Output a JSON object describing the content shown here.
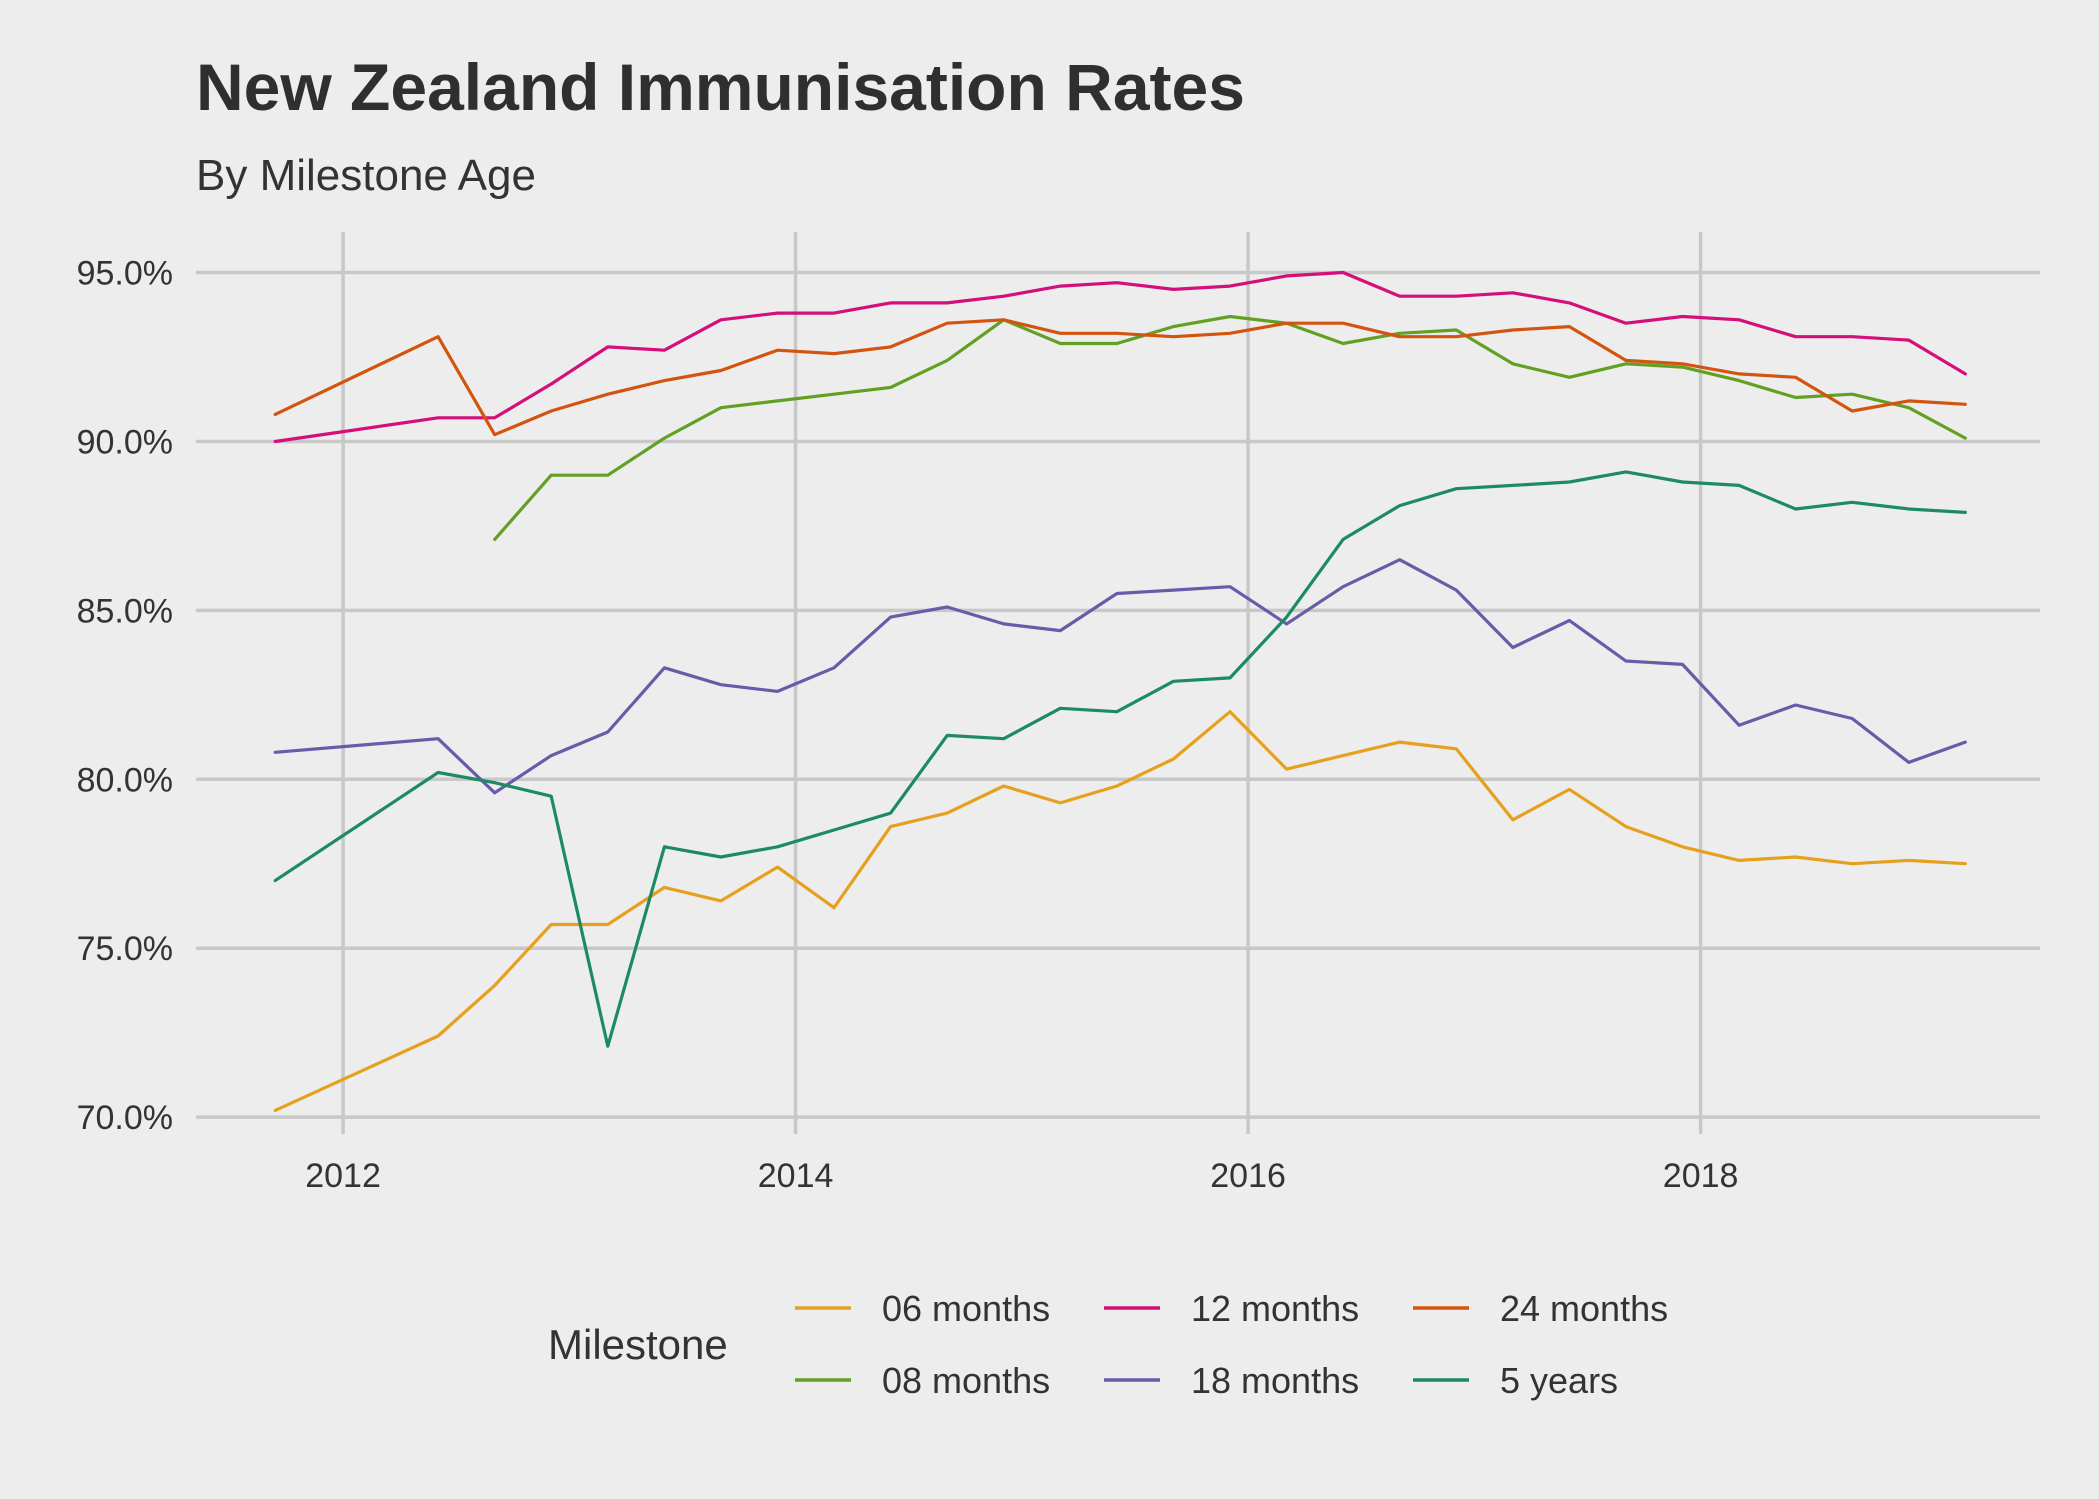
{
  "chart_data": {
    "type": "line",
    "title": "New Zealand Immunisation Rates",
    "subtitle": "By Milestone Age",
    "xlabel": "",
    "ylabel": "",
    "xlim": [
      2011.35,
      2019.5
    ],
    "ylim": [
      69.5,
      96.2
    ],
    "x_ticks": [
      2012,
      2014,
      2016,
      2018
    ],
    "x_tick_labels": [
      "2012",
      "2014",
      "2016",
      "2018"
    ],
    "y_ticks": [
      70,
      75,
      80,
      85,
      90,
      95
    ],
    "y_tick_labels": [
      "70.0%",
      "75.0%",
      "80.0%",
      "85.0%",
      "90.0%",
      "95.0%"
    ],
    "grid": true,
    "legend": {
      "title": "Milestone",
      "position": "bottom",
      "order": [
        "06 months",
        "12 months",
        "24 months",
        "08 months",
        "18 months",
        "5 years"
      ]
    },
    "series": [
      {
        "name": "06 months",
        "color": "#E6A01E",
        "x": [
          2011.7,
          2012.42,
          2012.67,
          2012.92,
          2013.17,
          2013.42,
          2013.67,
          2013.92,
          2014.17,
          2014.42,
          2014.67,
          2014.92,
          2015.17,
          2015.42,
          2015.67,
          2015.92,
          2016.17,
          2016.42,
          2016.67,
          2016.92,
          2017.17,
          2017.42,
          2017.67,
          2017.92,
          2018.17,
          2018.42,
          2018.67,
          2018.92,
          2019.17
        ],
        "values": [
          70.2,
          72.4,
          73.9,
          75.7,
          75.7,
          76.8,
          76.4,
          77.4,
          76.2,
          78.6,
          79.0,
          79.8,
          79.3,
          79.8,
          80.6,
          82.0,
          80.3,
          80.7,
          81.1,
          80.9,
          78.8,
          79.7,
          78.6,
          78.0,
          77.6,
          77.7,
          77.5,
          77.6,
          77.5
        ]
      },
      {
        "name": "08 months",
        "color": "#62A023",
        "x": [
          2012.67,
          2012.92,
          2013.17,
          2013.42,
          2013.67,
          2013.92,
          2014.17,
          2014.42,
          2014.67,
          2014.92,
          2015.17,
          2015.42,
          2015.67,
          2015.92,
          2016.17,
          2016.42,
          2016.67,
          2016.92,
          2017.17,
          2017.42,
          2017.67,
          2017.92,
          2018.17,
          2018.42,
          2018.67,
          2018.92,
          2019.17
        ],
        "values": [
          87.1,
          89.0,
          89.0,
          90.1,
          91.0,
          91.2,
          91.4,
          91.6,
          92.4,
          93.6,
          92.9,
          92.9,
          93.4,
          93.7,
          93.5,
          92.9,
          93.2,
          93.3,
          92.3,
          91.9,
          92.3,
          92.2,
          91.8,
          91.3,
          91.4,
          91.0,
          90.1
        ]
      },
      {
        "name": "12 months",
        "color": "#D40E7B",
        "x": [
          2011.7,
          2012.42,
          2012.67,
          2012.92,
          2013.17,
          2013.42,
          2013.67,
          2013.92,
          2014.17,
          2014.42,
          2014.67,
          2014.92,
          2015.17,
          2015.42,
          2015.67,
          2015.92,
          2016.17,
          2016.42,
          2016.67,
          2016.92,
          2017.17,
          2017.42,
          2017.67,
          2017.92,
          2018.17,
          2018.42,
          2018.67,
          2018.92,
          2019.17
        ],
        "values": [
          90.0,
          90.7,
          90.7,
          91.7,
          92.8,
          92.7,
          93.6,
          93.8,
          93.8,
          94.1,
          94.1,
          94.3,
          94.6,
          94.7,
          94.5,
          94.6,
          94.9,
          95.0,
          94.3,
          94.3,
          94.4,
          94.1,
          93.5,
          93.7,
          93.6,
          93.1,
          93.1,
          93.0,
          92.0
        ]
      },
      {
        "name": "18 months",
        "color": "#6A5BA8",
        "x": [
          2011.7,
          2012.42,
          2012.67,
          2012.92,
          2013.17,
          2013.42,
          2013.67,
          2013.92,
          2014.17,
          2014.42,
          2014.67,
          2014.92,
          2015.17,
          2015.42,
          2015.67,
          2015.92,
          2016.17,
          2016.42,
          2016.67,
          2016.92,
          2017.17,
          2017.42,
          2017.67,
          2017.92,
          2018.17,
          2018.42,
          2018.67,
          2018.92,
          2019.17
        ],
        "values": [
          80.8,
          81.2,
          79.6,
          80.7,
          81.4,
          83.3,
          82.8,
          82.6,
          83.3,
          84.8,
          85.1,
          84.6,
          84.4,
          85.5,
          85.6,
          85.7,
          84.6,
          85.7,
          86.5,
          85.6,
          83.9,
          84.7,
          83.5,
          83.4,
          81.6,
          82.2,
          81.8,
          80.5,
          81.1
        ]
      },
      {
        "name": "24 months",
        "color": "#D3540F",
        "x": [
          2011.7,
          2012.42,
          2012.67,
          2012.92,
          2013.17,
          2013.42,
          2013.67,
          2013.92,
          2014.17,
          2014.42,
          2014.67,
          2014.92,
          2015.17,
          2015.42,
          2015.67,
          2015.92,
          2016.17,
          2016.42,
          2016.67,
          2016.92,
          2017.17,
          2017.42,
          2017.67,
          2017.92,
          2018.17,
          2018.42,
          2018.67,
          2018.92,
          2019.17
        ],
        "values": [
          90.8,
          93.1,
          90.2,
          90.9,
          91.4,
          91.8,
          92.1,
          92.7,
          92.6,
          92.8,
          93.5,
          93.6,
          93.2,
          93.2,
          93.1,
          93.2,
          93.5,
          93.5,
          93.1,
          93.1,
          93.3,
          93.4,
          92.4,
          92.3,
          92.0,
          91.9,
          90.9,
          91.2,
          91.1
        ]
      },
      {
        "name": "5 years",
        "color": "#1D8A66",
        "x": [
          2011.7,
          2012.42,
          2012.67,
          2012.92,
          2013.17,
          2013.42,
          2013.67,
          2013.92,
          2014.17,
          2014.42,
          2014.67,
          2014.92,
          2015.17,
          2015.42,
          2015.67,
          2015.92,
          2016.17,
          2016.42,
          2016.67,
          2016.92,
          2017.17,
          2017.42,
          2017.67,
          2017.92,
          2018.17,
          2018.42,
          2018.67,
          2018.92,
          2019.17
        ],
        "values": [
          77.0,
          80.2,
          79.9,
          79.5,
          72.1,
          78.0,
          77.7,
          78.0,
          78.5,
          79.0,
          81.3,
          81.2,
          82.1,
          82.0,
          82.9,
          83.0,
          84.8,
          87.1,
          88.1,
          88.6,
          88.7,
          88.8,
          89.1,
          88.8,
          88.7,
          88.0,
          88.2,
          88.0,
          87.9
        ]
      }
    ]
  }
}
